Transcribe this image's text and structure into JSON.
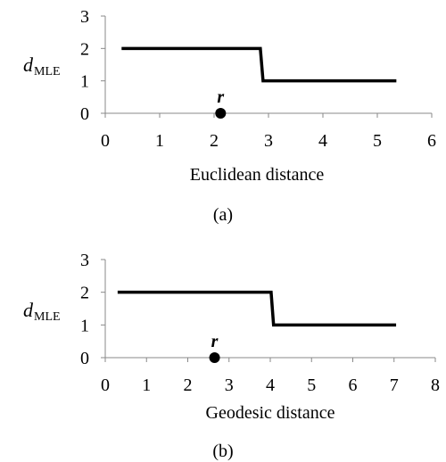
{
  "chart_data": [
    {
      "type": "line",
      "panel_caption": "(a)",
      "xlabel": "Euclidean distance",
      "ylabel_main": "d",
      "ylabel_sub": "MLE",
      "xlim": [
        0,
        6
      ],
      "ylim": [
        0,
        3
      ],
      "xticks": [
        "0",
        "1",
        "2",
        "3",
        "4",
        "5",
        "6"
      ],
      "yticks": [
        "0",
        "1",
        "2",
        "3"
      ],
      "series": [
        {
          "x": [
            0.3,
            2.85,
            2.9,
            5.35
          ],
          "y": [
            2,
            2,
            1,
            1
          ]
        }
      ],
      "point": {
        "label": "r",
        "x": 2.12,
        "y": 0
      },
      "grid": false
    },
    {
      "type": "line",
      "panel_caption": "(b)",
      "xlabel": "Geodesic distance",
      "ylabel_main": "d",
      "ylabel_sub": "MLE",
      "xlim": [
        0,
        8
      ],
      "ylim": [
        0,
        3
      ],
      "xticks": [
        "0",
        "1",
        "2",
        "3",
        "4",
        "5",
        "6",
        "7",
        "8"
      ],
      "yticks": [
        "0",
        "1",
        "2",
        "3"
      ],
      "series": [
        {
          "x": [
            0.3,
            4.02,
            4.08,
            7.05
          ],
          "y": [
            2,
            2,
            1,
            1
          ]
        }
      ],
      "point": {
        "label": "r",
        "x": 2.65,
        "y": 0
      },
      "grid": false
    }
  ]
}
